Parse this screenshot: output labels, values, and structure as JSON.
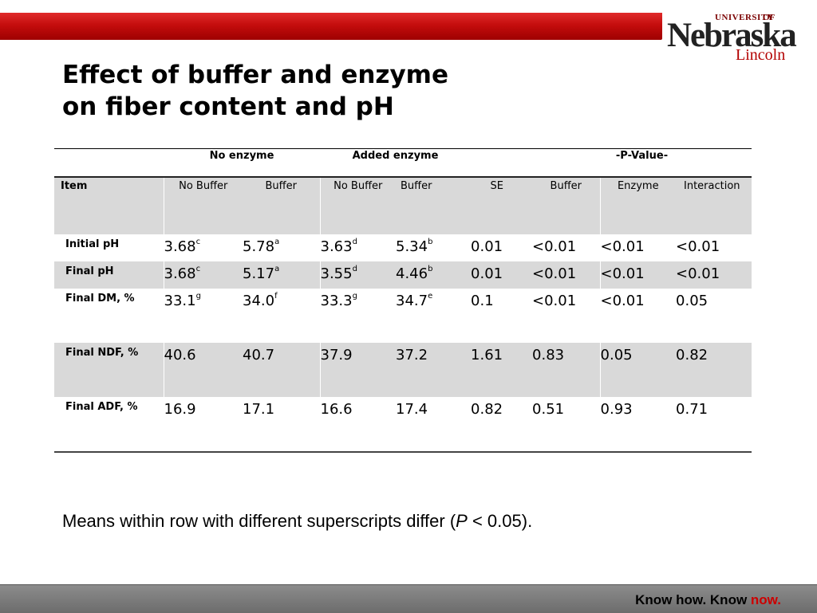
{
  "logo": {
    "university": "UNIVERSITY",
    "of": "OF",
    "name": "Nebraska",
    "campus": "Lincoln"
  },
  "title": {
    "line1": "Effect of buffer and enzyme",
    "line2": "on fiber content and pH"
  },
  "table": {
    "group_headers": {
      "no_enzyme": "No enzyme",
      "added_enzyme": "Added enzyme",
      "p_value": "-P-Value-"
    },
    "columns": [
      "Item",
      "No Buffer",
      "Buffer",
      "No Buffer",
      "Buffer",
      "SE",
      "Buffer",
      "Enzyme",
      "Interaction"
    ],
    "rows": [
      {
        "label": "Initial pH",
        "cells": [
          {
            "v": "3.68",
            "s": "c"
          },
          {
            "v": "5.78",
            "s": "a"
          },
          {
            "v": "3.63",
            "s": "d"
          },
          {
            "v": "5.34",
            "s": "b"
          },
          {
            "v": "0.01",
            "s": ""
          },
          {
            "v": "<0.01",
            "s": ""
          },
          {
            "v": "<0.01",
            "s": ""
          },
          {
            "v": "<0.01",
            "s": ""
          }
        ]
      },
      {
        "label": "Final pH",
        "cells": [
          {
            "v": "3.68",
            "s": "c"
          },
          {
            "v": "5.17",
            "s": "a"
          },
          {
            "v": "3.55",
            "s": "d"
          },
          {
            "v": "4.46",
            "s": "b"
          },
          {
            "v": "0.01",
            "s": ""
          },
          {
            "v": "<0.01",
            "s": ""
          },
          {
            "v": "<0.01",
            "s": ""
          },
          {
            "v": "<0.01",
            "s": ""
          }
        ]
      },
      {
        "label": "Final DM, %",
        "cells": [
          {
            "v": "33.1",
            "s": "g"
          },
          {
            "v": "34.0",
            "s": "f"
          },
          {
            "v": "33.3",
            "s": "g"
          },
          {
            "v": "34.7",
            "s": "e"
          },
          {
            "v": "0.1",
            "s": ""
          },
          {
            "v": "<0.01",
            "s": ""
          },
          {
            "v": "<0.01",
            "s": ""
          },
          {
            "v": "0.05",
            "s": ""
          }
        ]
      },
      {
        "label": "Final NDF, %",
        "cells": [
          {
            "v": "40.6",
            "s": ""
          },
          {
            "v": "40.7",
            "s": ""
          },
          {
            "v": "37.9",
            "s": ""
          },
          {
            "v": "37.2",
            "s": ""
          },
          {
            "v": "1.61",
            "s": ""
          },
          {
            "v": "0.83",
            "s": ""
          },
          {
            "v": "0.05",
            "s": ""
          },
          {
            "v": "0.82",
            "s": ""
          }
        ]
      },
      {
        "label": "Final ADF, %",
        "cells": [
          {
            "v": "16.9",
            "s": ""
          },
          {
            "v": "17.1",
            "s": ""
          },
          {
            "v": "16.6",
            "s": ""
          },
          {
            "v": "17.4",
            "s": ""
          },
          {
            "v": "0.82",
            "s": ""
          },
          {
            "v": "0.51",
            "s": ""
          },
          {
            "v": "0.93",
            "s": ""
          },
          {
            "v": "0.71",
            "s": ""
          }
        ]
      }
    ]
  },
  "footnote": {
    "before": "Means within row with different superscripts differ (",
    "p": "P",
    "after": " < 0.05)."
  },
  "tagline": {
    "main": "Know how. Know ",
    "accent": "now."
  },
  "colors": {
    "brand_red": "#c40d0d",
    "table_gray": "#d9d9d9",
    "footer_gray": "#7a7a7a"
  }
}
